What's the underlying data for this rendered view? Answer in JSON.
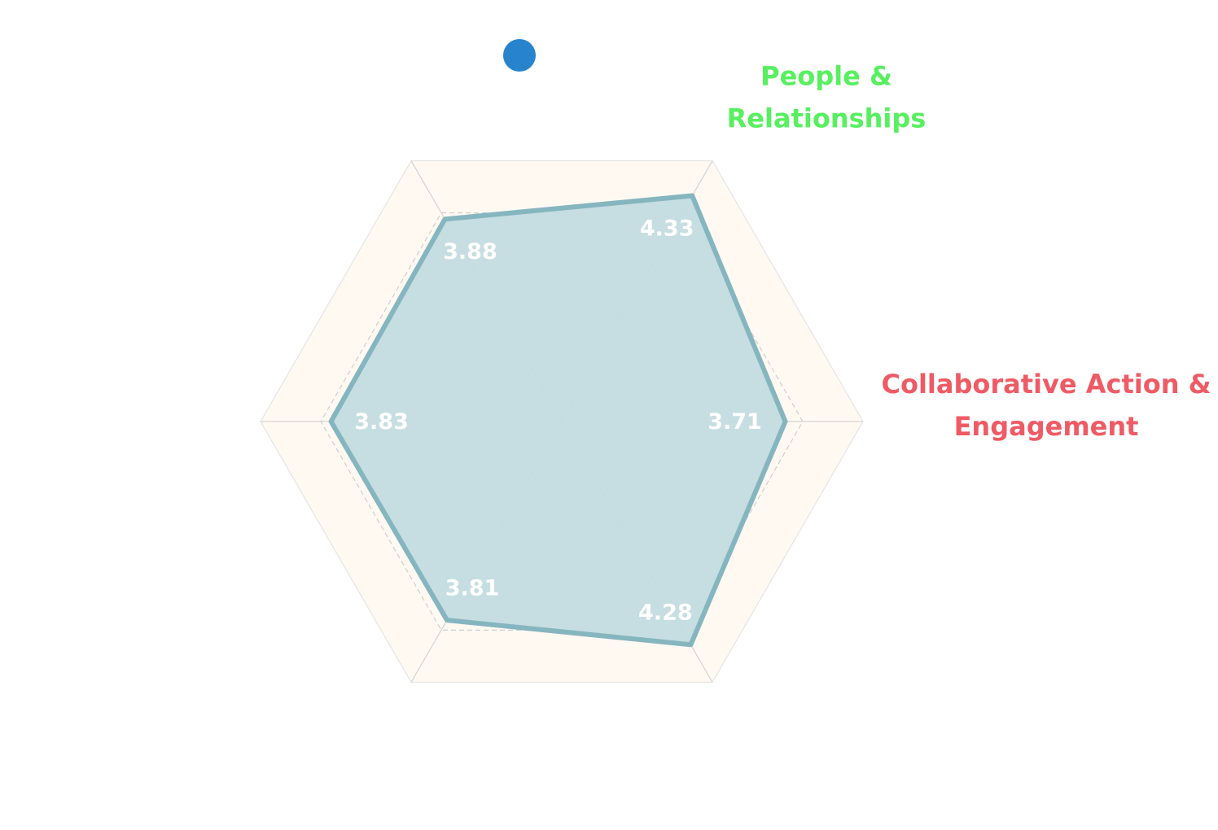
{
  "chart_data": {
    "type": "radar",
    "title": "",
    "rmax": 5,
    "ring_count": 5,
    "grid": true,
    "axes": [
      {
        "name": "People & Relationships",
        "lines": [
          "People &",
          "Relationships"
        ],
        "color": "#57f05f",
        "label_visible": true
      },
      {
        "name": "Collaborative Action & Engagement",
        "lines": [
          "Collaborative Action &",
          "Engagement"
        ],
        "color": "#ef5b65",
        "label_visible": true
      },
      {
        "name": "",
        "lines": [],
        "color": "#ffffff",
        "label_visible": false
      },
      {
        "name": "",
        "lines": [],
        "color": "#ffffff",
        "label_visible": false
      },
      {
        "name": "",
        "lines": [],
        "color": "#ffffff",
        "label_visible": false
      },
      {
        "name": "",
        "lines": [],
        "color": "#ffffff",
        "label_visible": false
      }
    ],
    "series": [
      {
        "values": [
          4.33,
          3.71,
          4.28,
          3.81,
          3.83,
          3.88
        ],
        "labels": [
          "4.33",
          "3.71",
          "4.28",
          "3.81",
          "3.83",
          "3.88"
        ],
        "line_color": "#85b6c0",
        "fill_color": "#c3dcdf"
      }
    ],
    "legend": {
      "placement": "top",
      "marker_color": "#2783cc"
    },
    "background_band_color": "#fff9f1"
  }
}
